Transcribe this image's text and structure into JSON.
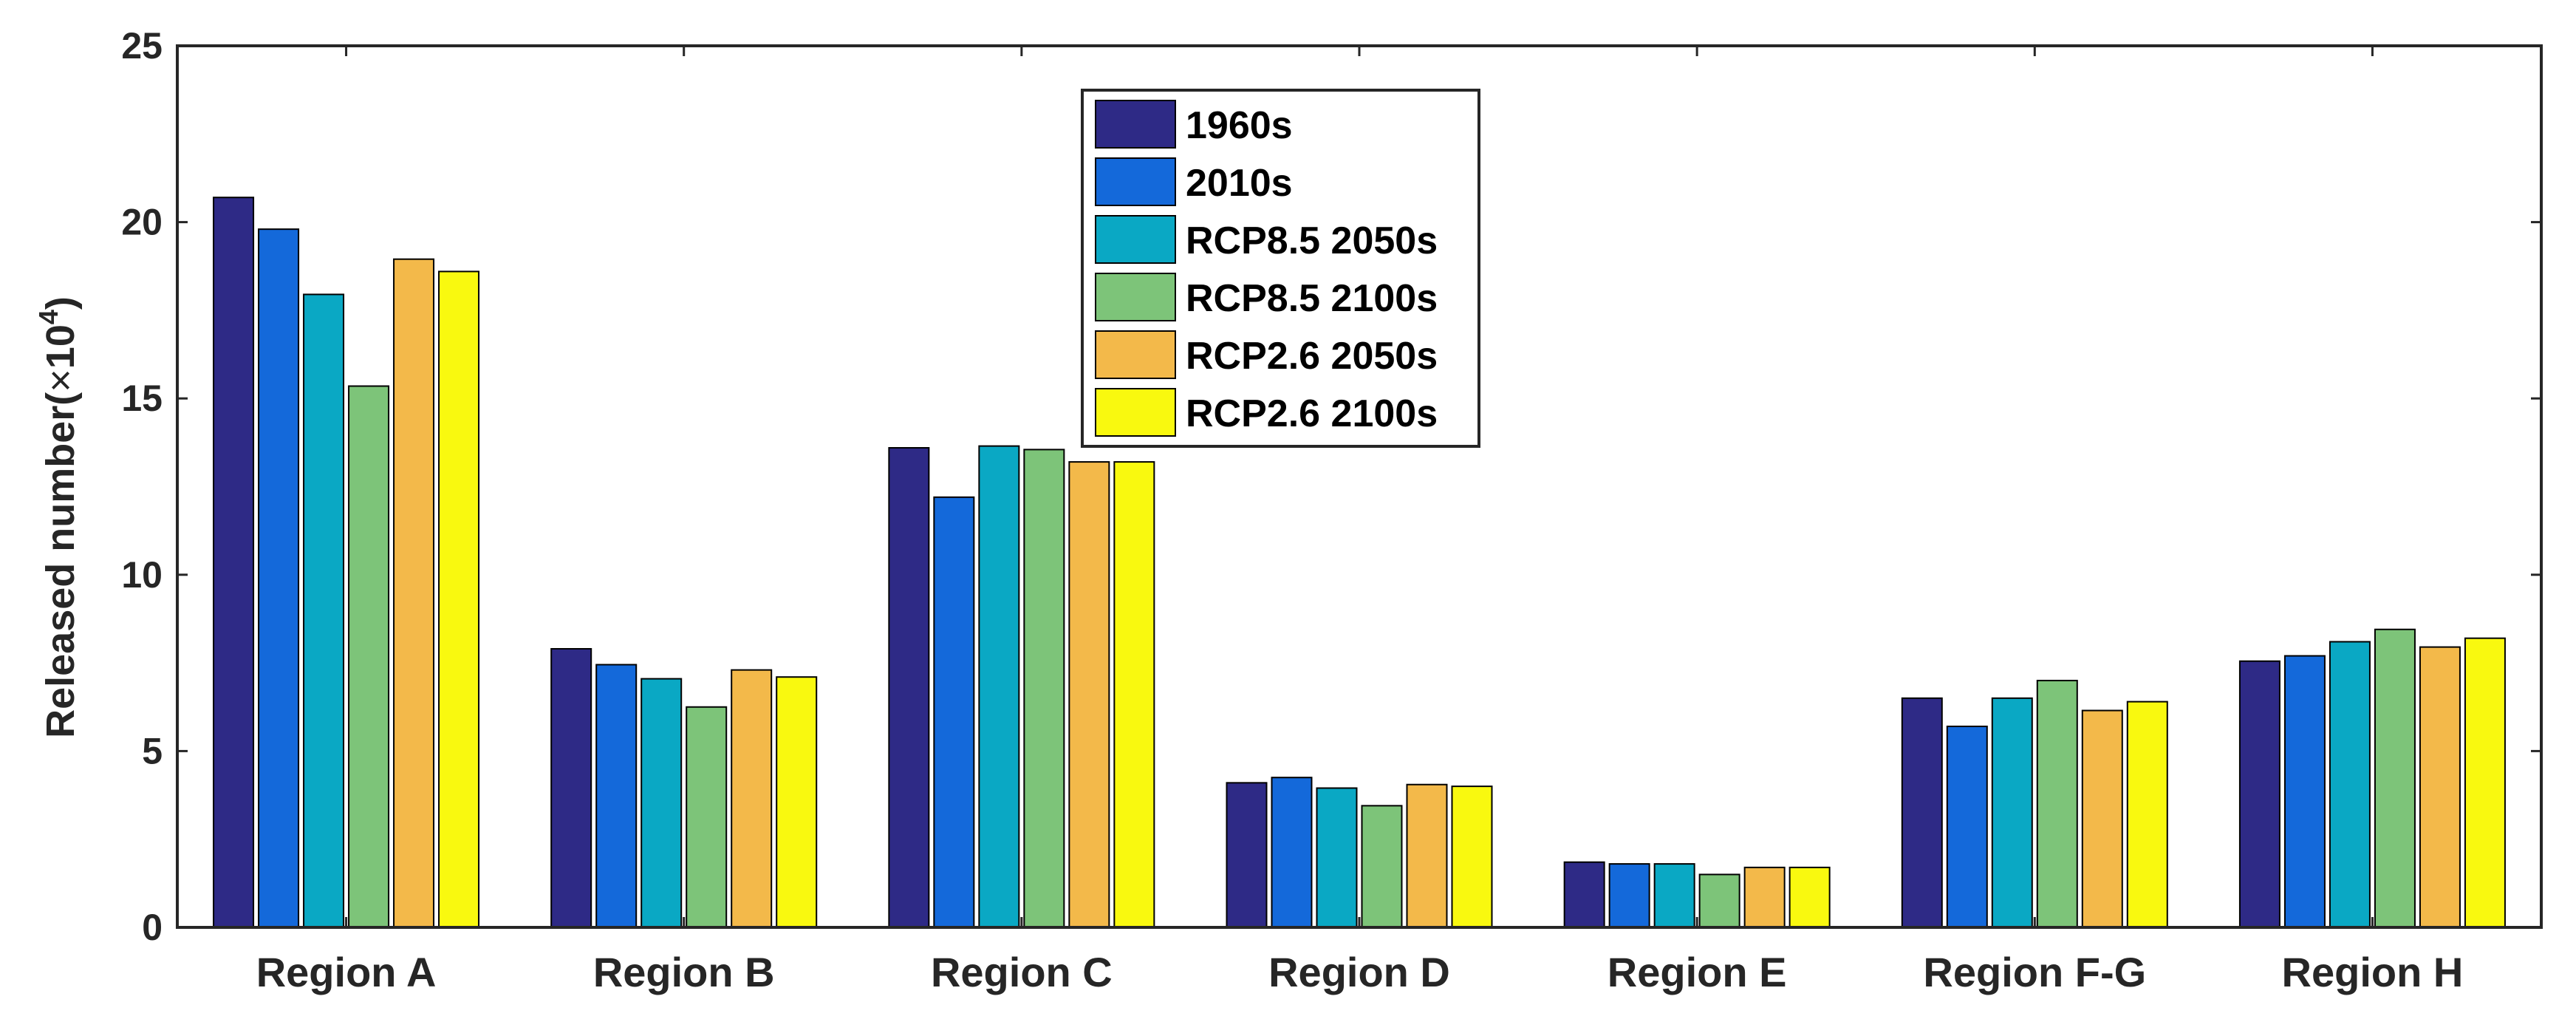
{
  "chart_data": {
    "type": "bar",
    "ylabel_main": "Released number(",
    "ylabel_times": "×",
    "ylabel_base": "10",
    "ylabel_exp": "4",
    "ylabel_close": ")",
    "ylim": [
      0,
      25
    ],
    "yticks": [
      "0",
      "5",
      "10",
      "15",
      "20",
      "25"
    ],
    "categories": [
      "Region A",
      "Region B",
      "Region C",
      "Region D",
      "Region E",
      "Region F-G",
      "Region H"
    ],
    "series": [
      {
        "name": "1960s",
        "color": "#2E2A86",
        "values": [
          20.7,
          7.9,
          13.6,
          4.1,
          1.85,
          6.5,
          7.55
        ]
      },
      {
        "name": "2010s",
        "color": "#1469DA",
        "values": [
          19.8,
          7.45,
          12.2,
          4.25,
          1.8,
          5.7,
          7.7
        ]
      },
      {
        "name": "RCP8.5 2050s",
        "color": "#0AA8C4",
        "values": [
          17.95,
          7.05,
          13.65,
          3.95,
          1.8,
          6.5,
          8.1
        ]
      },
      {
        "name": "RCP8.5 2100s",
        "color": "#7DC479",
        "values": [
          15.35,
          6.25,
          13.55,
          3.45,
          1.5,
          7.0,
          8.45
        ]
      },
      {
        "name": "RCP2.6 2050s",
        "color": "#F3B94A",
        "values": [
          18.95,
          7.3,
          13.2,
          4.05,
          1.7,
          6.15,
          7.95
        ]
      },
      {
        "name": "RCP2.6 2100s",
        "color": "#F9F90F",
        "values": [
          18.6,
          7.1,
          13.2,
          4.0,
          1.7,
          6.4,
          8.2
        ]
      }
    ],
    "legend_position": "top-center"
  }
}
